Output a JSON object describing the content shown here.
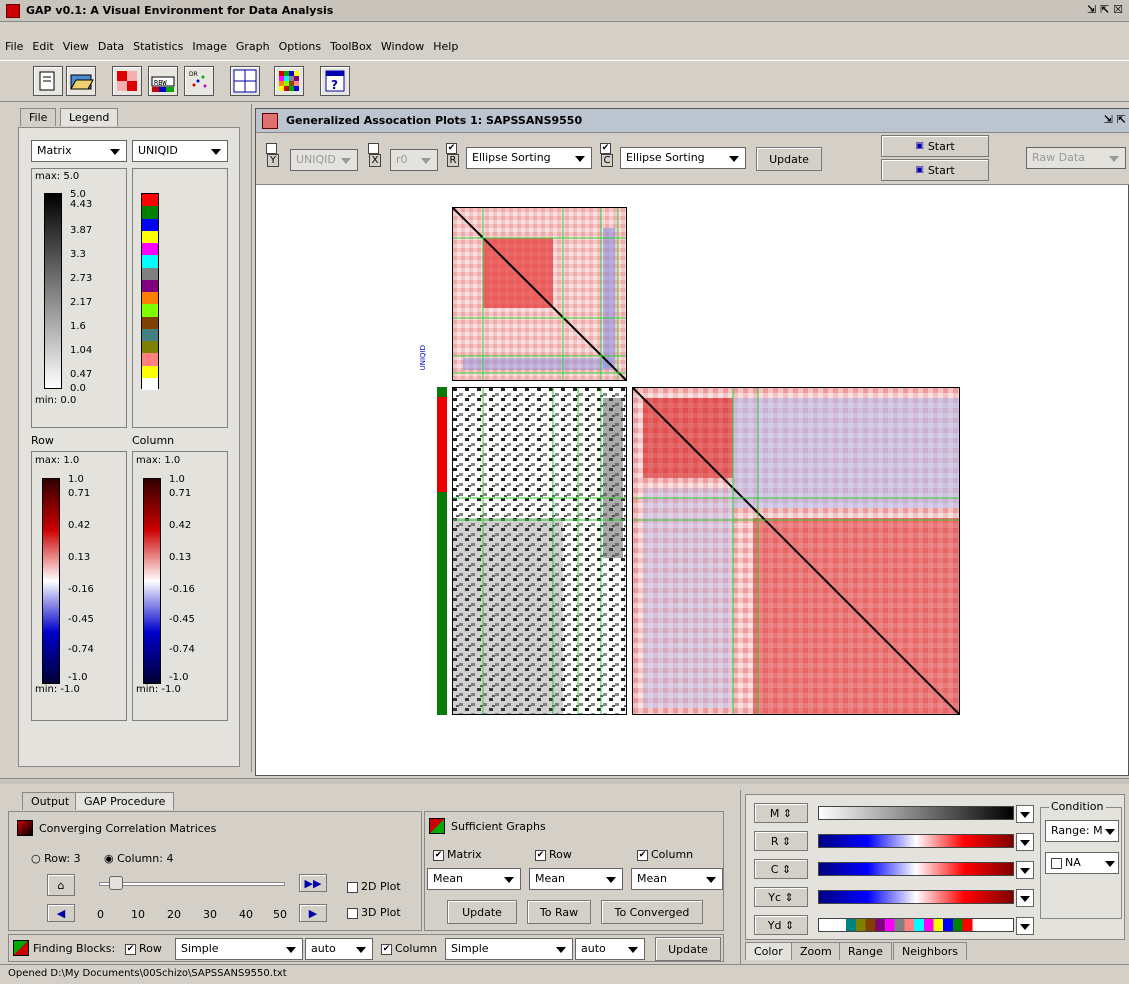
{
  "app": {
    "title": "GAP v0.1: A Visual Environment for Data Analysis",
    "menu": [
      "File",
      "Edit",
      "View",
      "Data",
      "Statistics",
      "Image",
      "Graph",
      "Options",
      "ToolBox",
      "Window",
      "Help"
    ]
  },
  "left_panel": {
    "tabs": [
      "File",
      "Legend"
    ],
    "matrix_select": "Matrix",
    "uniqid_select": "UNIQID",
    "matrix_legend": {
      "max_label": "max: 5.0",
      "min_label": "min: 0.0",
      "ticks": [
        "5.0",
        "4.43",
        "3.87",
        "3.3",
        "2.73",
        "2.17",
        "1.6",
        "1.04",
        "0.47",
        "0.0"
      ]
    },
    "uniqid_colors": [
      "#ff0000",
      "#008000",
      "#0000ff",
      "#ffff00",
      "#ff00ff",
      "#00ffff",
      "#808080",
      "#800080",
      "#ff8000",
      "#80ff00",
      "#804000",
      "#408080",
      "#808000",
      "#ff8080",
      "#ffff00",
      "#ffffff"
    ],
    "row_label": "Row",
    "column_label": "Column",
    "row_legend": {
      "max_label": "max: 1.0",
      "min_label": "min: -1.0",
      "ticks": [
        "1.0",
        "0.71",
        "0.42",
        "0.13",
        "-0.16",
        "-0.45",
        "-0.74",
        "-1.0"
      ]
    },
    "column_legend": {
      "max_label": "max: 1.0",
      "min_label": "min: -1.0",
      "ticks": [
        "1.0",
        "0.71",
        "0.42",
        "0.13",
        "-0.16",
        "-0.45",
        "-0.74",
        "-1.0"
      ]
    }
  },
  "gap_window": {
    "title": "Generalized Assocation Plots 1: SAPSSANS9550",
    "y_label": "Y",
    "uniqid_select": "UNIQID",
    "x_label": "X",
    "r0_select": "r0",
    "r_label": "R",
    "row_sort": "Ellipse Sorting",
    "c_label": "C",
    "col_sort": "Ellipse Sorting",
    "update_label": "Update",
    "start_label_1": "Start",
    "start_label_2": "Start",
    "raw_data_select": "Raw Data",
    "vertical_label": "UNIQID"
  },
  "bottom_left": {
    "tabs": [
      "Output",
      "GAP Procedure"
    ],
    "converging_title": "Converging Correlation Matrices",
    "row_radio": "Row: 3",
    "column_radio": "Column: 4",
    "slider_ticks": [
      "0",
      "10",
      "20",
      "30",
      "40",
      "50"
    ],
    "plot2d": "2D Plot",
    "plot3d": "3D Plot",
    "sufficient_title": "Sufficient Graphs",
    "matrix_cb": "Matrix",
    "row_cb": "Row",
    "column_cb": "Column",
    "mean1": "Mean",
    "mean2": "Mean",
    "mean3": "Mean",
    "update_btn": "Update",
    "to_raw_btn": "To Raw",
    "to_converged_btn": "To Converged",
    "finding_blocks": "Finding Blocks:",
    "fb_row": "Row",
    "fb_row_method": "Simple",
    "fb_row_auto": "auto",
    "fb_column": "Column",
    "fb_col_method": "Simple",
    "fb_col_auto": "auto",
    "fb_update": "Update"
  },
  "bottom_right": {
    "color_rows": [
      "M",
      "R",
      "C",
      "Yc",
      "Yd"
    ],
    "condition_title": "Condition",
    "range_select": "Range: M",
    "na_label": "NA",
    "tabs": [
      "Color",
      "Zoom",
      "Range",
      "Neighbors"
    ]
  },
  "status": "Opened D:\\My Documents\\00Schizo\\SAPSSANS9550.txt"
}
